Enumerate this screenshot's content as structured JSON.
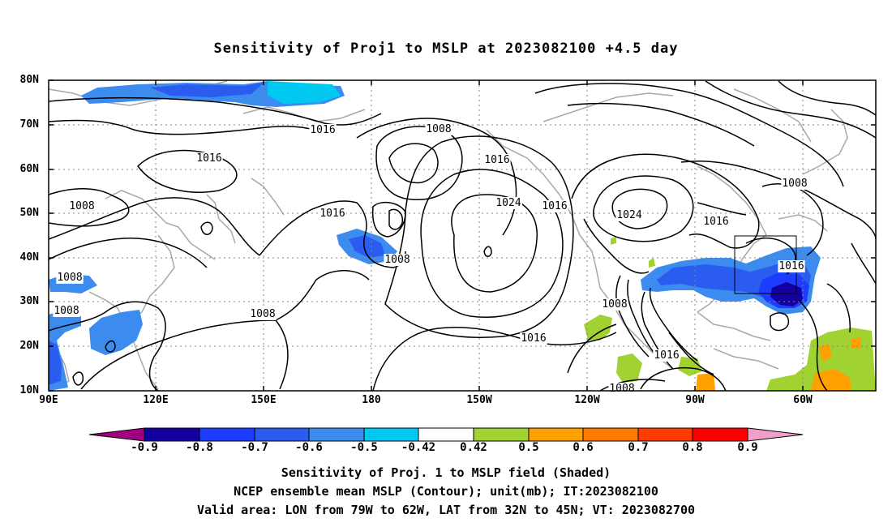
{
  "title": "Sensitivity of Proj1 to MSLP at 2023082100 +4.5 day",
  "lat_labels": [
    "80N",
    "70N",
    "60N",
    "50N",
    "40N",
    "30N",
    "20N",
    "10N"
  ],
  "lon_labels": [
    "90E",
    "120E",
    "150E",
    "180",
    "150W",
    "120W",
    "90W",
    "60W"
  ],
  "contour_labels": [
    "1016",
    "1008",
    "1016",
    "1016",
    "1008",
    "1016",
    "1024",
    "1016",
    "1024",
    "1016",
    "1008",
    "1008",
    "1016",
    "1008",
    "1008",
    "1008",
    "1016",
    "1016",
    "1008"
  ],
  "colorbar": {
    "ticks": [
      "-0.9",
      "-0.8",
      "-0.7",
      "-0.6",
      "-0.5",
      "-0.42",
      "0.42",
      "0.5",
      "0.6",
      "0.7",
      "0.8",
      "0.9"
    ],
    "colors": [
      "#a0007f",
      "#1400a0",
      "#1e3cff",
      "#2b5cf0",
      "#3c8cf0",
      "#00c8f0",
      "#ffffff",
      "#a0d232",
      "#ffa000",
      "#ff7800",
      "#ff3c00",
      "#ff0000",
      "#f0a0c8"
    ]
  },
  "captions": [
    "Sensitivity of Proj. 1 to MSLP field (Shaded)",
    "NCEP ensemble mean MSLP (Contour); unit(mb); IT:2023082100",
    "Valid area: LON from 79W to 62W, LAT from 32N to 45N; VT: 2023082700"
  ]
}
